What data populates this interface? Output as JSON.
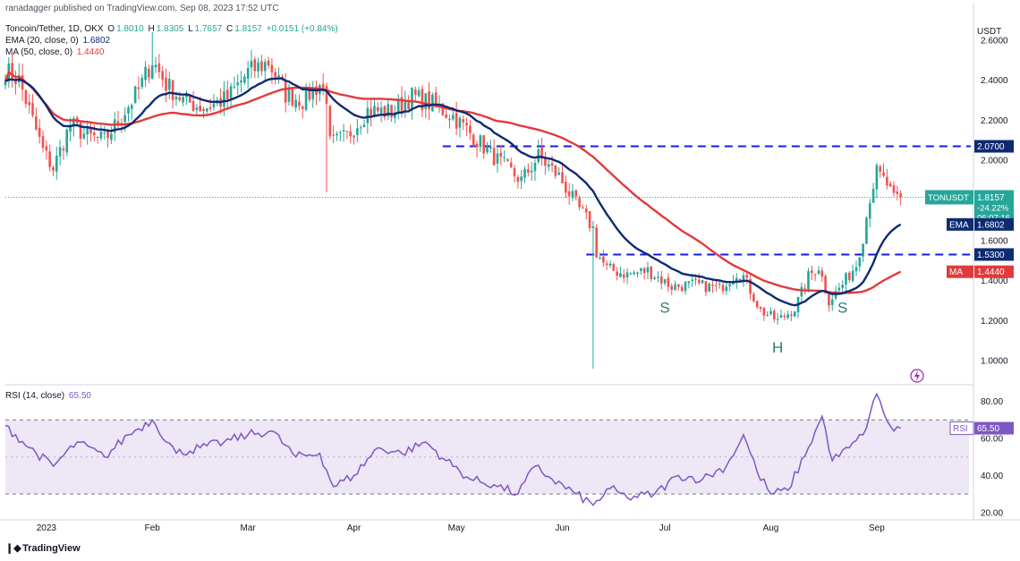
{
  "header": {
    "publisher": "ranadagger published on TradingView.com, Sep 08, 2023 17:52 UTC",
    "symbol": "Toncoin/Tether, 1D, OKX",
    "ohlc": {
      "o_label": "O",
      "o": "1.8010",
      "h_label": "H",
      "h": "1.8305",
      "l_label": "L",
      "l": "1.7657",
      "c_label": "C",
      "c": "1.8157",
      "change": "+0.0151 (+0.84%)"
    },
    "ema_label": "EMA (20, close, 0)",
    "ema_value": "1.6802",
    "ma_label": "MA (50, close, 0)",
    "ma_value": "1.4440",
    "rsi_label": "RSI (14, close)",
    "rsi_value": "65.50"
  },
  "footer": {
    "brand": "TradingView"
  },
  "colors": {
    "up": "#26a69a",
    "down": "#ef5350",
    "ema": "#0d2a73",
    "ma": "#e23a3a",
    "rsi": "#7e57c2",
    "rsi_band": "#ede7f6",
    "level": "#1a1ae6",
    "pattern_text": "#2e7d6b"
  },
  "chart_data": [
    {
      "type": "candlestick",
      "title": "Toncoin/Tether, 1D, OKX",
      "currency": "USDT",
      "ylim": [
        0.88,
        2.72
      ],
      "y_ticks": [
        "1.0000",
        "1.2000",
        "1.4000",
        "1.6000",
        "1.8000",
        "2.0000",
        "2.2000",
        "2.4000",
        "2.6000"
      ],
      "x_ticks": [
        "2023",
        "Feb",
        "Mar",
        "Apr",
        "May",
        "Jun",
        "Jul",
        "Aug",
        "Sep"
      ],
      "date_range": [
        "2022-12-20",
        "2023-09-08"
      ],
      "close_anchors": [
        [
          "2022-12-20",
          2.45
        ],
        [
          "2022-12-24",
          2.4
        ],
        [
          "2022-12-27",
          2.25
        ],
        [
          "2022-12-31",
          2.05
        ],
        [
          "2023-01-03",
          1.96
        ],
        [
          "2023-01-08",
          2.18
        ],
        [
          "2023-01-13",
          2.12
        ],
        [
          "2023-01-18",
          2.1
        ],
        [
          "2023-01-23",
          2.22
        ],
        [
          "2023-01-28",
          2.35
        ],
        [
          "2023-02-01",
          2.5
        ],
        [
          "2023-02-05",
          2.38
        ],
        [
          "2023-02-10",
          2.3
        ],
        [
          "2023-02-16",
          2.26
        ],
        [
          "2023-02-23",
          2.31
        ],
        [
          "2023-03-01",
          2.44
        ],
        [
          "2023-03-07",
          2.49
        ],
        [
          "2023-03-12",
          2.33
        ],
        [
          "2023-03-17",
          2.3
        ],
        [
          "2023-03-22",
          2.38
        ],
        [
          "2023-03-24",
          2.32
        ],
        [
          "2023-03-25",
          2.08
        ],
        [
          "2023-03-30",
          2.12
        ],
        [
          "2023-04-05",
          2.25
        ],
        [
          "2023-04-12",
          2.24
        ],
        [
          "2023-04-18",
          2.32
        ],
        [
          "2023-04-24",
          2.28
        ],
        [
          "2023-04-30",
          2.22
        ],
        [
          "2023-05-06",
          2.12
        ],
        [
          "2023-05-13",
          2.0
        ],
        [
          "2023-05-20",
          1.9
        ],
        [
          "2023-05-25",
          2.02
        ],
        [
          "2023-05-31",
          1.92
        ],
        [
          "2023-06-05",
          1.78
        ],
        [
          "2023-06-10",
          1.66
        ],
        [
          "2023-06-11",
          1.54
        ],
        [
          "2023-06-14",
          1.46
        ],
        [
          "2023-06-20",
          1.43
        ],
        [
          "2023-06-26",
          1.45
        ],
        [
          "2023-07-03",
          1.37
        ],
        [
          "2023-07-10",
          1.38
        ],
        [
          "2023-07-17",
          1.36
        ],
        [
          "2023-07-22",
          1.44
        ],
        [
          "2023-07-24",
          1.42
        ],
        [
          "2023-07-29",
          1.25
        ],
        [
          "2023-08-03",
          1.2
        ],
        [
          "2023-08-08",
          1.26
        ],
        [
          "2023-08-12",
          1.42
        ],
        [
          "2023-08-15",
          1.47
        ],
        [
          "2023-08-18",
          1.3
        ],
        [
          "2023-08-22",
          1.38
        ],
        [
          "2023-08-26",
          1.48
        ],
        [
          "2023-08-28",
          1.62
        ],
        [
          "2023-08-30",
          1.82
        ],
        [
          "2023-09-01",
          1.94
        ],
        [
          "2023-09-04",
          1.88
        ],
        [
          "2023-09-06",
          1.8
        ],
        [
          "2023-09-08",
          1.8157
        ]
      ],
      "extreme_wicks": [
        {
          "date": "2023-06-10",
          "low": 0.96
        },
        {
          "date": "2023-03-24",
          "low": 1.84
        },
        {
          "date": "2023-02-01",
          "high": 2.64
        }
      ],
      "series": [
        {
          "name": "EMA (20, close, 0)",
          "last": 1.6802
        },
        {
          "name": "MA (50, close, 0)",
          "last": 1.444
        }
      ],
      "levels": [
        2.07,
        1.53
      ],
      "level_labels": [
        "2.0700",
        "1.5300"
      ],
      "price_label": {
        "symbol": "TONUSDT",
        "price": "1.8157",
        "change": "-24.22%",
        "countdown": "06:07:16"
      },
      "ema_badge": {
        "name": "EMA",
        "value": "1.6802"
      },
      "ma_badge": {
        "name": "MA",
        "value": "1.4440"
      },
      "annotations": [
        {
          "text": "S",
          "date": "2023-07-01",
          "y": 1.24
        },
        {
          "text": "H",
          "date": "2023-08-03",
          "y": 1.04
        },
        {
          "text": "S",
          "date": "2023-08-22",
          "y": 1.24
        }
      ]
    },
    {
      "type": "line",
      "title": "RSI (14, close)",
      "ylim": [
        18,
        88
      ],
      "y_ticks": [
        "20.00",
        "40.00",
        "60.00",
        "80.00"
      ],
      "band": [
        30,
        70
      ],
      "midline": 50,
      "last_value": "65.50",
      "series": [
        {
          "name": "RSI",
          "points": [
            [
              "2022-12-20",
              67
            ],
            [
              "2022-12-27",
              55
            ],
            [
              "2023-01-03",
              45
            ],
            [
              "2023-01-10",
              58
            ],
            [
              "2023-01-18",
              50
            ],
            [
              "2023-01-25",
              62
            ],
            [
              "2023-02-01",
              70
            ],
            [
              "2023-02-08",
              52
            ],
            [
              "2023-02-15",
              55
            ],
            [
              "2023-02-22",
              58
            ],
            [
              "2023-03-01",
              62
            ],
            [
              "2023-03-08",
              64
            ],
            [
              "2023-03-15",
              50
            ],
            [
              "2023-03-22",
              52
            ],
            [
              "2023-03-26",
              34
            ],
            [
              "2023-04-01",
              40
            ],
            [
              "2023-04-08",
              55
            ],
            [
              "2023-04-15",
              52
            ],
            [
              "2023-04-22",
              58
            ],
            [
              "2023-04-28",
              48
            ],
            [
              "2023-05-05",
              38
            ],
            [
              "2023-05-12",
              35
            ],
            [
              "2023-05-19",
              30
            ],
            [
              "2023-05-24",
              45
            ],
            [
              "2023-05-29",
              38
            ],
            [
              "2023-06-05",
              30
            ],
            [
              "2023-06-10",
              24
            ],
            [
              "2023-06-15",
              33
            ],
            [
              "2023-06-20",
              28
            ],
            [
              "2023-06-28",
              30
            ],
            [
              "2023-07-05",
              40
            ],
            [
              "2023-07-12",
              38
            ],
            [
              "2023-07-19",
              45
            ],
            [
              "2023-07-24",
              62
            ],
            [
              "2023-07-28",
              42
            ],
            [
              "2023-08-01",
              30
            ],
            [
              "2023-08-06",
              32
            ],
            [
              "2023-08-12",
              55
            ],
            [
              "2023-08-16",
              72
            ],
            [
              "2023-08-19",
              48
            ],
            [
              "2023-08-24",
              55
            ],
            [
              "2023-08-28",
              62
            ],
            [
              "2023-09-01",
              84
            ],
            [
              "2023-09-03",
              74
            ],
            [
              "2023-09-06",
              64
            ],
            [
              "2023-09-08",
              65.5
            ]
          ]
        }
      ]
    }
  ]
}
